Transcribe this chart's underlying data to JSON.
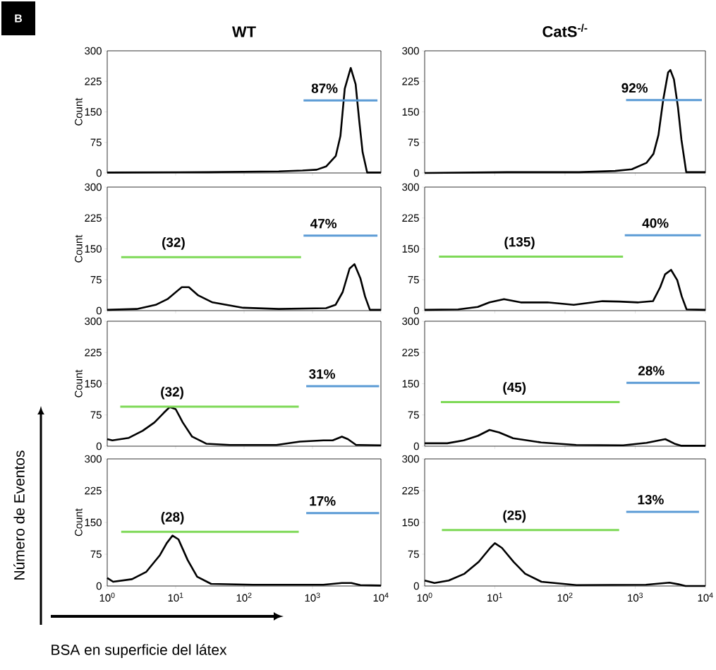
{
  "chart_data": [
    {
      "type": "line",
      "title": "WT",
      "ylabel": "Count",
      "log": "x",
      "xlim": [
        1,
        10000
      ],
      "ylim": [
        0,
        300
      ],
      "xticks": [
        1,
        10,
        100,
        1000,
        10000
      ],
      "yticks": [
        0,
        75,
        150,
        225,
        300
      ],
      "tick_labels": "y",
      "series": [
        {
          "color": "#000000",
          "x": [
            1,
            29.5,
            321,
            714,
            1150,
            1580,
            2190,
            2560,
            2960,
            3620,
            4270,
            4800,
            5400,
            6300,
            10000
          ],
          "values": [
            1,
            2,
            4,
            6,
            8,
            16,
            42,
            91,
            207,
            258,
            218,
            131,
            51,
            1,
            1
          ]
        },
        {
          "color": "#5b9bd5",
          "x": [
            740,
            8900
          ],
          "values": [
            178,
            178
          ]
        }
      ],
      "annotations": [
        "B",
        "Número de Eventos",
        "BSA en superficie del látex",
        {
          "text": "87%",
          "x": 1500,
          "y": 178
        }
      ]
    },
    {
      "type": "line",
      "title": "CatS$^{-/-}$",
      "log": "x",
      "xlim": [
        1,
        10000
      ],
      "ylim": [
        0,
        300
      ],
      "xticks": [
        1,
        10,
        100,
        1000,
        10000
      ],
      "yticks": [
        0,
        75,
        150,
        225,
        300
      ],
      "tick_labels": "y",
      "series": [
        {
          "color": "#000000",
          "x": [
            1,
            14.9,
            158,
            517,
            894,
            1450,
            1820,
            2140,
            2500,
            2940,
            3170,
            3560,
            4060,
            4550,
            5330,
            10000
          ],
          "values": [
            0,
            2,
            2,
            5,
            9,
            25,
            47,
            93,
            179,
            247,
            253,
            230,
            162,
            82,
            2,
            2
          ]
        },
        {
          "color": "#5b9bd5",
          "x": [
            740,
            8900
          ],
          "values": [
            179,
            179
          ]
        }
      ],
      "annotations": [
        {
          "text": "92%",
          "x": 980,
          "y": 179
        }
      ]
    },
    {
      "type": "line",
      "ylabel": "Count",
      "log": "x",
      "xlim": [
        1,
        10000
      ],
      "ylim": [
        0,
        300
      ],
      "xticks": [
        1,
        10,
        100,
        1000,
        10000
      ],
      "yticks": [
        0,
        75,
        150,
        225,
        300
      ],
      "tick_labels": "y",
      "series": [
        {
          "color": "#000000",
          "x": [
            1,
            2.7,
            5.1,
            7.6,
            12.3,
            15.6,
            21.4,
            34.6,
            97,
            321,
            1580,
            2170,
            2760,
            3480,
            4100,
            5000,
            5870,
            6900,
            10000
          ],
          "values": [
            2,
            4,
            14,
            28,
            57,
            57,
            37,
            20,
            7,
            4,
            6,
            14,
            45,
            102,
            113,
            79,
            34,
            2,
            2
          ]
        },
        {
          "color": "#7ed957",
          "x": [
            1.6,
            680
          ],
          "values": [
            130,
            130
          ]
        },
        {
          "color": "#5b9bd5",
          "x": [
            740,
            8900
          ],
          "values": [
            182,
            182
          ]
        }
      ],
      "annotations": [
        {
          "text": "(32)",
          "x": 9.3,
          "y": 130
        },
        {
          "text": "47%",
          "x": 1450,
          "y": 182
        }
      ]
    },
    {
      "type": "line",
      "log": "x",
      "xlim": [
        1,
        10000
      ],
      "ylim": [
        0,
        300
      ],
      "xticks": [
        1,
        10,
        100,
        1000,
        10000
      ],
      "yticks": [
        0,
        75,
        150,
        225,
        300
      ],
      "tick_labels": "y",
      "series": [
        {
          "color": "#000000",
          "x": [
            1,
            3.0,
            5.7,
            8.4,
            13.5,
            23.4,
            56,
            133,
            342,
            593,
            1110,
            1790,
            2270,
            2660,
            3240,
            3970,
            4610,
            5390,
            10000
          ],
          "values": [
            2,
            3,
            9,
            20,
            28,
            20,
            20,
            14,
            23,
            22,
            20,
            23,
            57,
            88,
            99,
            74,
            34,
            3,
            2
          ]
        },
        {
          "color": "#7ed957",
          "x": [
            1.6,
            670
          ],
          "values": [
            131,
            131
          ]
        },
        {
          "color": "#5b9bd5",
          "x": [
            710,
            8600
          ],
          "values": [
            183,
            183
          ]
        }
      ],
      "annotations": [
        {
          "text": "(135)",
          "x": 22.5,
          "y": 131
        },
        {
          "text": "40%",
          "x": 1940,
          "y": 183
        }
      ]
    },
    {
      "type": "line",
      "ylabel": "Count",
      "log": "x",
      "xlim": [
        1,
        10000
      ],
      "ylim": [
        0,
        300
      ],
      "xticks": [
        1,
        10,
        100,
        1000,
        10000
      ],
      "yticks": [
        0,
        75,
        150,
        225,
        300
      ],
      "tick_labels": "y",
      "series": [
        {
          "color": "#000000",
          "x": [
            1,
            1.19,
            2.07,
            3.3,
            4.9,
            6.7,
            8.2,
            10,
            12.7,
            17.4,
            28,
            62,
            297,
            655,
            1440,
            1970,
            2690,
            3290,
            4340,
            10000
          ],
          "values": [
            17,
            14,
            20,
            37,
            57,
            80,
            94,
            89,
            57,
            23,
            6,
            3,
            3,
            11,
            14,
            14,
            23,
            17,
            3,
            2
          ]
        },
        {
          "color": "#7ed957",
          "x": [
            1.55,
            630
          ],
          "values": [
            95,
            95
          ]
        },
        {
          "color": "#5b9bd5",
          "x": [
            810,
            9400
          ],
          "values": [
            144,
            144
          ]
        }
      ],
      "annotations": [
        {
          "text": "(32)",
          "x": 8.9,
          "y": 95
        },
        {
          "text": "31%",
          "x": 1380,
          "y": 144
        }
      ]
    },
    {
      "type": "line",
      "log": "x",
      "xlim": [
        1,
        10000
      ],
      "ylim": [
        0,
        300
      ],
      "xticks": [
        1,
        10,
        100,
        1000,
        10000
      ],
      "yticks": [
        0,
        75,
        150,
        225,
        300
      ],
      "tick_labels": "y",
      "series": [
        {
          "color": "#000000",
          "x": [
            1,
            2.1,
            3.6,
            5.75,
            8.4,
            11.5,
            18.2,
            45.7,
            144,
            673,
            1450,
            2680,
            3630,
            4570,
            10000
          ],
          "values": [
            7,
            7,
            14,
            25,
            39,
            33,
            19,
            9,
            3,
            2,
            8,
            17,
            6,
            1,
            1
          ]
        },
        {
          "color": "#7ed957",
          "x": [
            1.7,
            600
          ],
          "values": [
            106,
            106
          ]
        },
        {
          "color": "#5b9bd5",
          "x": [
            750,
            8300
          ],
          "values": [
            152,
            152
          ]
        }
      ],
      "annotations": [
        {
          "text": "(45)",
          "x": 19,
          "y": 106
        },
        {
          "text": "28%",
          "x": 1690,
          "y": 152
        }
      ]
    },
    {
      "type": "line",
      "ylabel": "Count",
      "log": "x",
      "xlim": [
        1,
        10000
      ],
      "ylim": [
        0,
        300
      ],
      "xticks": [
        {
          "value": 1,
          "label": "10$^{0}$"
        },
        {
          "value": 10,
          "label": "10$^{1}$"
        },
        {
          "value": 100,
          "label": "10$^{2}$"
        },
        {
          "value": 1000,
          "label": "10$^{3}$"
        },
        {
          "value": 10000,
          "label": "10$^{4}$"
        }
      ],
      "yticks": [
        0,
        75,
        150,
        225,
        300
      ],
      "series": [
        {
          "color": "#000000",
          "x": [
            1,
            1.22,
            2.3,
            3.7,
            5.9,
            7.4,
            9.0,
            11,
            15,
            20.6,
            33,
            135,
            1440,
            2690,
            3700,
            5000,
            10000
          ],
          "values": [
            19,
            10,
            16,
            33,
            73,
            101,
            119,
            110,
            61,
            22,
            5,
            3,
            3,
            7,
            7,
            2,
            1
          ]
        },
        {
          "color": "#7ed957",
          "x": [
            1.6,
            630
          ],
          "values": [
            128,
            128
          ]
        },
        {
          "color": "#5b9bd5",
          "x": [
            810,
            9400
          ],
          "values": [
            172,
            172
          ]
        }
      ],
      "annotations": [
        {
          "text": "(28)",
          "x": 9.0,
          "y": 128
        },
        {
          "text": "17%",
          "x": 1400,
          "y": 172
        }
      ]
    },
    {
      "type": "line",
      "log": "x",
      "xlim": [
        1,
        10000
      ],
      "ylim": [
        0,
        300
      ],
      "xticks": [
        {
          "value": 1,
          "label": "10$^{0}$"
        },
        {
          "value": 10,
          "label": "10$^{1}$"
        },
        {
          "value": 100,
          "label": "10$^{2}$"
        },
        {
          "value": 1000,
          "label": "10$^{3}$"
        },
        {
          "value": 10000,
          "label": "10$^{4}$"
        }
      ],
      "yticks": [
        0,
        75,
        150,
        225,
        300
      ],
      "series": [
        {
          "color": "#000000",
          "x": [
            1,
            1.38,
            2.2,
            3.7,
            5.9,
            8.6,
            10,
            12.6,
            18.5,
            27,
            46,
            145,
            1420,
            3070,
            4140,
            5200,
            10000
          ],
          "values": [
            13,
            7,
            13,
            29,
            57,
            90,
            101,
            90,
            57,
            29,
            10,
            2,
            3,
            8,
            4,
            0,
            0
          ]
        },
        {
          "color": "#7ed957",
          "x": [
            1.76,
            590
          ],
          "values": [
            132,
            132
          ]
        },
        {
          "color": "#5b9bd5",
          "x": [
            745,
            8100
          ],
          "values": [
            175,
            175
          ]
        }
      ],
      "annotations": [
        {
          "text": "(25)",
          "x": 19,
          "y": 132
        },
        {
          "text": "13%",
          "x": 1660,
          "y": 175
        }
      ]
    }
  ]
}
